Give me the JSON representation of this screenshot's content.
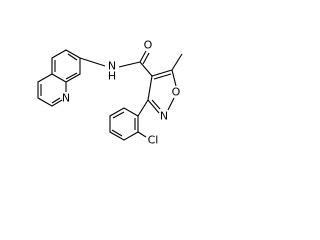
{
  "atoms": [
    {
      "label": "O"
    },
    {
      "label": "H"
    },
    {
      "label": "N"
    },
    {
      "label": "N"
    },
    {
      "label": "O"
    },
    {
      "label": "N"
    },
    {
      "label": "Cl"
    }
  ]
}
